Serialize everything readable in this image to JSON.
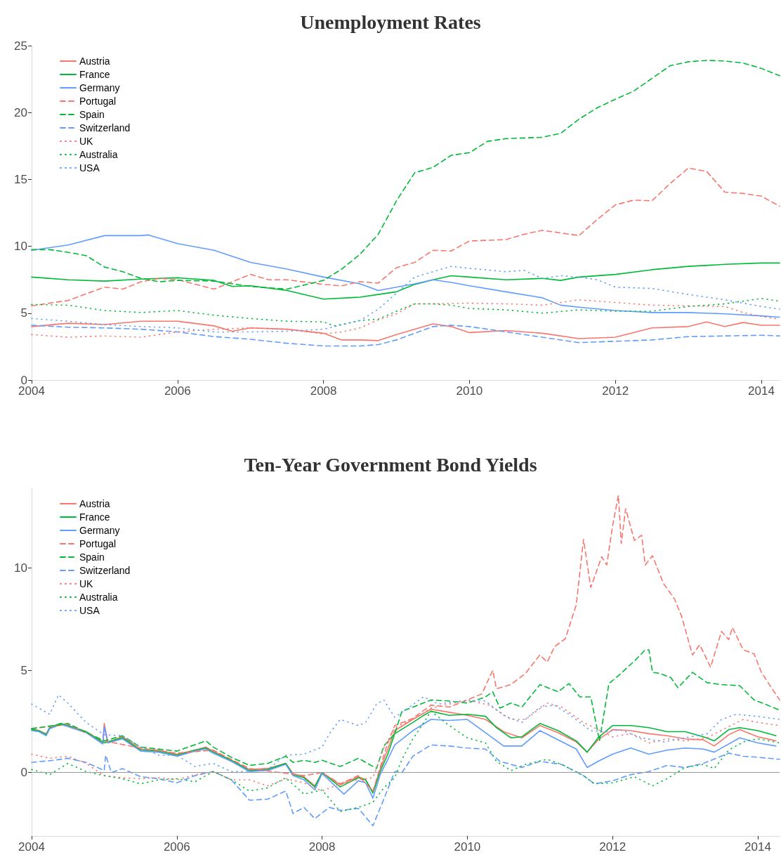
{
  "chart_data": [
    {
      "type": "line",
      "title": "Unemployment Rates",
      "xlim": [
        2004,
        2014.25
      ],
      "xticks": [
        2004,
        2006,
        2008,
        2010,
        2012,
        2014
      ],
      "ylim": [
        0,
        25
      ],
      "yticks": [
        0,
        5,
        10,
        15,
        20,
        25
      ],
      "legend": "top left",
      "series": [
        {
          "name": "Austria",
          "color": "#f8766d",
          "line_style": "solid",
          "x": [
            2004,
            2004.5,
            2005,
            2005.5,
            2006,
            2006.5,
            2006.75,
            2007,
            2007.5,
            2008,
            2008.25,
            2008.5,
            2008.75,
            2009,
            2009.5,
            2009.75,
            2010,
            2010.5,
            2011,
            2011.5,
            2012,
            2012.5,
            2013,
            2013.25,
            2013.5,
            2013.75,
            2014,
            2014.25
          ],
          "values": [
            4.0,
            4.25,
            4.15,
            4.4,
            4.4,
            4.05,
            3.65,
            3.9,
            3.8,
            3.5,
            3.0,
            3.0,
            2.95,
            3.4,
            4.2,
            4.0,
            3.55,
            3.7,
            3.5,
            3.1,
            3.2,
            3.9,
            4.0,
            4.35,
            4.0,
            4.3,
            4.1,
            4.1
          ]
        },
        {
          "name": "France",
          "color": "#00ba38",
          "line_style": "solid",
          "x": [
            2004,
            2004.5,
            2005,
            2005.5,
            2006,
            2006.5,
            2006.75,
            2007,
            2007.5,
            2008,
            2008.5,
            2008.75,
            2009,
            2009.25,
            2009.5,
            2009.75,
            2010,
            2010.5,
            2011,
            2011.25,
            2011.5,
            2012,
            2012.5,
            2013,
            2013.5,
            2014,
            2014.25
          ],
          "values": [
            7.7,
            7.5,
            7.4,
            7.55,
            7.65,
            7.45,
            7.0,
            7.05,
            6.7,
            6.05,
            6.2,
            6.4,
            6.6,
            7.15,
            7.5,
            7.8,
            7.7,
            7.5,
            7.6,
            7.45,
            7.7,
            7.9,
            8.25,
            8.5,
            8.65,
            8.75,
            8.75
          ]
        },
        {
          "name": "Germany",
          "color": "#619cff",
          "line_style": "solid",
          "x": [
            2004,
            2004.5,
            2005,
            2005.5,
            2005.6,
            2006,
            2006.5,
            2007,
            2007.5,
            2008,
            2008.5,
            2008.75,
            2009.25,
            2009.5,
            2009.75,
            2010,
            2010.5,
            2011,
            2011.25,
            2011.5,
            2012,
            2012.5,
            2013,
            2013.5,
            2014,
            2014.25
          ],
          "values": [
            9.7,
            10.1,
            10.8,
            10.8,
            10.85,
            10.2,
            9.7,
            8.8,
            8.3,
            7.7,
            7.2,
            6.7,
            7.2,
            7.5,
            7.3,
            7.05,
            6.6,
            6.15,
            5.6,
            5.45,
            5.2,
            5.05,
            5.05,
            4.95,
            4.8,
            4.7
          ]
        },
        {
          "name": "Portugal",
          "color": "#f8766d",
          "line_style": "dashed",
          "x": [
            2004,
            2004.5,
            2005,
            2005.25,
            2005.5,
            2005.75,
            2006,
            2006.5,
            2007,
            2007.25,
            2007.5,
            2008,
            2008.25,
            2008.5,
            2008.75,
            2009,
            2009.25,
            2009.5,
            2009.75,
            2010,
            2010.5,
            2010.75,
            2011,
            2011.5,
            2011.75,
            2012,
            2012.25,
            2012.5,
            2012.75,
            2013,
            2013.25,
            2013.5,
            2013.75,
            2014,
            2014.25
          ],
          "values": [
            5.55,
            5.95,
            6.95,
            6.8,
            7.35,
            7.6,
            7.5,
            6.8,
            7.9,
            7.5,
            7.5,
            7.15,
            7.05,
            7.35,
            7.25,
            8.4,
            8.8,
            9.7,
            9.65,
            10.4,
            10.5,
            10.9,
            11.2,
            10.8,
            12.0,
            13.1,
            13.45,
            13.4,
            14.7,
            15.85,
            15.6,
            14.05,
            13.95,
            13.75,
            13.0
          ]
        },
        {
          "name": "Spain",
          "color": "#00ba38",
          "line_style": "dashed",
          "x": [
            2004,
            2004.25,
            2004.5,
            2004.75,
            2005,
            2005.25,
            2005.5,
            2005.75,
            2006,
            2006.5,
            2007,
            2007.5,
            2008,
            2008.25,
            2008.5,
            2008.75,
            2009,
            2009.25,
            2009.5,
            2009.75,
            2010,
            2010.25,
            2010.5,
            2011,
            2011.25,
            2011.5,
            2011.75,
            2012,
            2012.25,
            2012.5,
            2012.75,
            2013,
            2013.25,
            2013.5,
            2013.75,
            2014,
            2014.25
          ],
          "values": [
            9.75,
            9.75,
            9.55,
            9.3,
            8.45,
            8.1,
            7.6,
            7.35,
            7.45,
            7.4,
            7.0,
            6.8,
            7.45,
            8.3,
            9.4,
            10.9,
            13.4,
            15.5,
            15.9,
            16.8,
            17.0,
            17.85,
            18.05,
            18.15,
            18.45,
            19.5,
            20.35,
            21.0,
            21.6,
            22.55,
            23.5,
            23.8,
            23.9,
            23.85,
            23.7,
            23.3,
            22.75
          ]
        },
        {
          "name": "Switzerland",
          "color": "#619cff",
          "line_style": "dashed",
          "x": [
            2004,
            2004.5,
            2005,
            2005.5,
            2006,
            2006.5,
            2007,
            2007.5,
            2008,
            2008.5,
            2008.75,
            2009,
            2009.5,
            2009.75,
            2010,
            2010.5,
            2011,
            2011.5,
            2012,
            2012.5,
            2013,
            2013.5,
            2014,
            2014.25
          ],
          "values": [
            4.1,
            3.95,
            3.9,
            3.8,
            3.6,
            3.25,
            3.05,
            2.75,
            2.55,
            2.55,
            2.65,
            3.0,
            4.0,
            4.1,
            4.0,
            3.6,
            3.2,
            2.8,
            2.9,
            3.0,
            3.25,
            3.3,
            3.35,
            3.3
          ]
        },
        {
          "name": "UK",
          "color": "#f8766d",
          "line_style": "dotted",
          "x": [
            2004,
            2004.5,
            2005,
            2005.5,
            2006,
            2006.5,
            2007,
            2007.5,
            2008,
            2008.25,
            2008.5,
            2008.75,
            2009,
            2009.25,
            2009.5,
            2010,
            2010.5,
            2011,
            2011.5,
            2012,
            2012.5,
            2013,
            2013.5,
            2013.75,
            2014,
            2014.25
          ],
          "values": [
            3.4,
            3.2,
            3.3,
            3.2,
            3.6,
            3.8,
            3.9,
            3.8,
            3.45,
            3.6,
            3.9,
            4.5,
            4.95,
            5.7,
            5.7,
            5.75,
            5.7,
            5.6,
            6.0,
            5.8,
            5.6,
            5.55,
            5.5,
            5.05,
            4.75,
            4.55
          ]
        },
        {
          "name": "Australia",
          "color": "#00ba38",
          "line_style": "dotted",
          "x": [
            2004,
            2004.5,
            2005,
            2005.5,
            2006,
            2006.5,
            2007,
            2007.5,
            2008,
            2008.15,
            2008.5,
            2008.75,
            2009,
            2009.25,
            2009.5,
            2009.75,
            2010,
            2010.5,
            2011,
            2011.5,
            2012,
            2012.5,
            2013,
            2013.5,
            2014,
            2014.25
          ],
          "values": [
            5.65,
            5.6,
            5.2,
            5.05,
            5.2,
            4.85,
            4.6,
            4.4,
            4.35,
            4.05,
            4.45,
            4.55,
            5.15,
            5.7,
            5.7,
            5.6,
            5.35,
            5.25,
            5.0,
            5.25,
            5.15,
            5.15,
            5.5,
            5.7,
            6.1,
            5.9
          ]
        },
        {
          "name": "USA",
          "color": "#619cff",
          "line_style": "dotted",
          "x": [
            2004,
            2004.5,
            2005,
            2005.5,
            2006,
            2006.5,
            2007,
            2007.5,
            2008,
            2008.5,
            2008.75,
            2009,
            2009.25,
            2009.5,
            2009.75,
            2010,
            2010.5,
            2010.75,
            2011,
            2011.25,
            2011.5,
            2011.75,
            2012,
            2012.5,
            2013,
            2013.5,
            2014,
            2014.25
          ],
          "values": [
            4.6,
            4.4,
            4.15,
            4.0,
            3.9,
            3.6,
            3.6,
            3.65,
            3.8,
            4.45,
            5.3,
            6.5,
            7.7,
            8.1,
            8.5,
            8.35,
            8.1,
            8.2,
            7.6,
            7.8,
            7.7,
            7.5,
            6.95,
            6.85,
            6.4,
            6.0,
            5.5,
            5.3
          ]
        }
      ]
    },
    {
      "type": "line",
      "title": "Ten-Year Government Bond Yields",
      "xlim": [
        2004,
        2014.3
      ],
      "xticks": [
        2004,
        2006,
        2008,
        2010,
        2012,
        2014
      ],
      "ylim": [
        -3.1,
        13.9
      ],
      "yticks": [
        0,
        5,
        10
      ],
      "legend": "top left",
      "ref_lines": [
        {
          "axis": "y",
          "value": 0,
          "color": "#999999"
        }
      ],
      "series": [
        {
          "name": "Austria",
          "color": "#f8766d",
          "line_style": "solid",
          "x": [
            2004,
            2004.1,
            2004.2,
            2004.25,
            2004.4,
            2004.5,
            2004.75,
            2004.98,
            2005.0,
            2005.05,
            2005.25,
            2005.5,
            2005.75,
            2006,
            2006.25,
            2006.4,
            2006.5,
            2006.75,
            2007,
            2007.25,
            2007.5,
            2007.6,
            2007.75,
            2007.9,
            2008,
            2008.25,
            2008.5,
            2008.6,
            2008.7,
            2008.8,
            2008.9,
            2009,
            2009.25,
            2009.5,
            2009.75,
            2010,
            2010.25,
            2010.5,
            2010.75,
            2011,
            2011.25,
            2011.5,
            2011.65,
            2011.8,
            2012,
            2012.25,
            2012.5,
            2012.75,
            2013,
            2013.25,
            2013.4,
            2013.6,
            2013.75,
            2014,
            2014.25
          ],
          "values": [
            2.15,
            2.05,
            1.9,
            2.2,
            2.4,
            2.3,
            2.0,
            1.45,
            2.4,
            1.5,
            1.75,
            1.15,
            1.1,
            0.9,
            1.1,
            1.25,
            1.05,
            0.6,
            0.15,
            0.2,
            0.45,
            -0.05,
            -0.2,
            -0.65,
            0.0,
            -0.6,
            -0.2,
            -0.35,
            -0.95,
            0.15,
            1.1,
            2.05,
            2.6,
            3.1,
            2.95,
            2.8,
            2.6,
            2.0,
            1.7,
            2.3,
            1.95,
            1.5,
            1.0,
            1.6,
            2.1,
            2.05,
            1.9,
            1.8,
            1.65,
            1.6,
            1.3,
            1.85,
            2.1,
            1.75,
            1.55
          ]
        },
        {
          "name": "France",
          "color": "#00ba38",
          "line_style": "solid",
          "x": [
            2004,
            2004.1,
            2004.2,
            2004.25,
            2004.4,
            2004.5,
            2004.75,
            2005,
            2005.25,
            2005.5,
            2005.75,
            2006,
            2006.25,
            2006.4,
            2006.5,
            2006.75,
            2007,
            2007.25,
            2007.5,
            2007.6,
            2007.75,
            2007.9,
            2008,
            2008.25,
            2008.5,
            2008.6,
            2008.7,
            2008.8,
            2008.9,
            2009,
            2009.25,
            2009.4,
            2009.5,
            2009.75,
            2010,
            2010.25,
            2010.4,
            2010.6,
            2010.75,
            2011,
            2011.25,
            2011.5,
            2011.65,
            2011.8,
            2012,
            2012.25,
            2012.5,
            2012.75,
            2013,
            2013.25,
            2013.4,
            2013.6,
            2013.75,
            2014,
            2014.25
          ],
          "values": [
            2.1,
            2.05,
            1.85,
            2.2,
            2.4,
            2.3,
            2.0,
            1.45,
            1.7,
            1.1,
            1.05,
            0.85,
            1.1,
            1.2,
            1.0,
            0.6,
            0.1,
            0.15,
            0.45,
            -0.1,
            -0.25,
            -0.7,
            0.0,
            -0.7,
            -0.25,
            -0.35,
            -1.0,
            0.05,
            0.85,
            1.9,
            2.45,
            2.8,
            3.0,
            2.8,
            2.85,
            2.75,
            2.2,
            1.7,
            1.75,
            2.4,
            2.05,
            1.55,
            1.0,
            1.7,
            2.3,
            2.3,
            2.2,
            2.0,
            2.0,
            1.75,
            1.55,
            2.1,
            2.2,
            2.05,
            1.8
          ]
        },
        {
          "name": "Germany",
          "color": "#619cff",
          "line_style": "solid",
          "x": [
            2004,
            2004.1,
            2004.2,
            2004.25,
            2004.4,
            2004.5,
            2004.75,
            2004.98,
            2005.0,
            2005.05,
            2005.25,
            2005.5,
            2005.75,
            2006,
            2006.25,
            2006.4,
            2006.5,
            2006.75,
            2007,
            2007.25,
            2007.5,
            2007.6,
            2007.75,
            2007.9,
            2008,
            2008.3,
            2008.5,
            2008.6,
            2008.7,
            2008.8,
            2008.9,
            2009,
            2009.25,
            2009.5,
            2009.75,
            2010,
            2010.5,
            2010.75,
            2011,
            2011.5,
            2011.65,
            2011.8,
            2012,
            2012.25,
            2012.5,
            2012.75,
            2013,
            2013.25,
            2013.4,
            2013.75,
            2014,
            2014.25
          ],
          "values": [
            2.05,
            2.0,
            1.8,
            2.15,
            2.35,
            2.25,
            1.95,
            1.4,
            2.25,
            1.45,
            1.65,
            1.05,
            1.0,
            0.8,
            1.05,
            1.15,
            0.95,
            0.55,
            0.05,
            0.1,
            0.4,
            -0.15,
            -0.35,
            -0.85,
            -0.05,
            -1.05,
            -0.4,
            -0.5,
            -1.25,
            -0.1,
            0.6,
            1.35,
            2.05,
            2.6,
            2.55,
            2.6,
            1.3,
            1.3,
            2.05,
            1.15,
            0.25,
            0.55,
            0.9,
            1.2,
            0.9,
            1.1,
            1.2,
            1.15,
            1.0,
            1.7,
            1.45,
            1.3
          ]
        },
        {
          "name": "Portugal",
          "color": "#f8766d",
          "line_style": "dashed",
          "x": [
            2004,
            2004.5,
            2005,
            2005.5,
            2006,
            2006.5,
            2007,
            2007.75,
            2008,
            2008.25,
            2008.5,
            2008.7,
            2008.9,
            2009,
            2009.25,
            2009.5,
            2009.75,
            2010,
            2010.2,
            2010.35,
            2010.4,
            2010.6,
            2010.8,
            2011,
            2011.1,
            2011.2,
            2011.35,
            2011.5,
            2011.6,
            2011.7,
            2011.85,
            2011.92,
            2012,
            2012.08,
            2012.12,
            2012.18,
            2012.3,
            2012.4,
            2012.45,
            2012.55,
            2012.7,
            2012.85,
            2012.95,
            2013.1,
            2013.2,
            2013.35,
            2013.5,
            2013.6,
            2013.65,
            2013.8,
            2013.95,
            2014.05,
            2014.15,
            2014.3
          ],
          "values": [
            2.15,
            2.35,
            1.55,
            1.2,
            0.95,
            1.1,
            0.2,
            -0.15,
            0.0,
            -0.55,
            -0.15,
            -0.9,
            1.4,
            2.3,
            2.65,
            3.3,
            3.2,
            3.55,
            3.85,
            5.0,
            4.1,
            4.3,
            4.85,
            5.75,
            5.4,
            6.15,
            6.55,
            8.2,
            11.4,
            9.05,
            10.55,
            10.15,
            12.05,
            13.55,
            11.2,
            12.9,
            11.35,
            11.6,
            10.15,
            10.6,
            9.25,
            8.5,
            7.65,
            5.75,
            6.25,
            5.15,
            6.9,
            6.5,
            7.1,
            6.0,
            5.8,
            4.9,
            4.35,
            3.55
          ]
        },
        {
          "name": "Spain",
          "color": "#00ba38",
          "line_style": "dashed",
          "x": [
            2004,
            2004.5,
            2005,
            2005.25,
            2005.5,
            2006,
            2006.4,
            2006.5,
            2006.75,
            2007,
            2007.25,
            2007.5,
            2007.6,
            2007.75,
            2007.9,
            2008,
            2008.25,
            2008.5,
            2008.75,
            2008.85,
            2009,
            2009.1,
            2009.25,
            2009.5,
            2009.75,
            2010,
            2010.25,
            2010.35,
            2010.45,
            2010.6,
            2010.75,
            2011,
            2011.25,
            2011.4,
            2011.55,
            2011.7,
            2011.82,
            2011.95,
            2012.1,
            2012.3,
            2012.45,
            2012.5,
            2012.55,
            2012.65,
            2012.8,
            2012.9,
            2013.1,
            2013.3,
            2013.5,
            2013.75,
            2013.95,
            2014.1,
            2014.3
          ],
          "values": [
            2.15,
            2.4,
            1.55,
            1.8,
            1.25,
            1.05,
            1.55,
            1.25,
            0.75,
            0.35,
            0.45,
            0.8,
            0.5,
            0.6,
            0.5,
            0.6,
            0.3,
            0.7,
            0.2,
            1.3,
            1.9,
            3.0,
            3.2,
            3.55,
            3.5,
            3.4,
            3.7,
            3.95,
            3.15,
            3.4,
            3.2,
            4.3,
            3.95,
            4.35,
            3.7,
            3.7,
            1.55,
            4.35,
            4.8,
            5.45,
            6.0,
            6.0,
            4.9,
            4.85,
            4.65,
            4.15,
            4.9,
            4.4,
            4.3,
            4.25,
            3.55,
            3.35,
            3.05
          ]
        },
        {
          "name": "Switzerland",
          "color": "#619cff",
          "line_style": "dashed",
          "x": [
            2004,
            2004.3,
            2004.5,
            2004.75,
            2005,
            2005.02,
            2005.1,
            2005.25,
            2005.5,
            2005.75,
            2006,
            2006.25,
            2006.5,
            2006.75,
            2007,
            2007.25,
            2007.5,
            2007.6,
            2007.75,
            2007.9,
            2008.1,
            2008.25,
            2008.5,
            2008.7,
            2008.85,
            2009,
            2009.1,
            2009.25,
            2009.5,
            2009.75,
            2010,
            2010.25,
            2010.45,
            2010.75,
            2011,
            2011.3,
            2011.6,
            2011.75,
            2012,
            2012.25,
            2012.5,
            2012.75,
            2013,
            2013.25,
            2013.6,
            2013.8,
            2014,
            2014.3
          ],
          "values": [
            0.5,
            0.6,
            0.7,
            0.5,
            0.1,
            0.85,
            0.0,
            0.2,
            -0.2,
            -0.3,
            -0.5,
            -0.15,
            0.05,
            -0.35,
            -1.35,
            -1.3,
            -0.9,
            -2.0,
            -1.7,
            -2.25,
            -1.7,
            -1.85,
            -1.75,
            -2.6,
            -1.3,
            0.05,
            0.0,
            0.8,
            1.35,
            1.3,
            1.2,
            1.15,
            0.55,
            0.25,
            0.55,
            0.4,
            -0.15,
            -0.55,
            -0.4,
            -0.1,
            0.05,
            0.35,
            0.25,
            0.45,
            0.95,
            0.8,
            0.75,
            0.65
          ]
        },
        {
          "name": "UK",
          "color": "#f8766d",
          "line_style": "dotted",
          "x": [
            2004,
            2004.25,
            2004.5,
            2004.75,
            2005,
            2005.25,
            2005.5,
            2005.75,
            2006,
            2006.25,
            2006.5,
            2006.75,
            2007,
            2007.25,
            2007.5,
            2007.75,
            2008,
            2008.25,
            2008.5,
            2008.7,
            2008.85,
            2009,
            2009.25,
            2009.5,
            2010,
            2010.3,
            2010.6,
            2010.8,
            2011.1,
            2011.3,
            2011.6,
            2011.8,
            2012,
            2012.25,
            2012.5,
            2012.75,
            2013,
            2013.3,
            2013.6,
            2013.8,
            2014,
            2014.3
          ],
          "values": [
            0.9,
            0.7,
            0.8,
            0.45,
            -0.15,
            -0.25,
            -0.3,
            -0.25,
            -0.35,
            -0.1,
            0.05,
            -0.35,
            -0.35,
            -0.65,
            -0.3,
            -0.5,
            -0.9,
            -0.55,
            -0.35,
            -0.25,
            1.2,
            2.2,
            2.6,
            3.15,
            3.55,
            3.3,
            2.6,
            2.6,
            3.4,
            3.2,
            2.45,
            2.1,
            1.75,
            1.9,
            1.45,
            1.65,
            1.55,
            1.7,
            2.25,
            2.6,
            2.45,
            2.3
          ]
        },
        {
          "name": "Australia",
          "color": "#00ba38",
          "line_style": "dotted",
          "x": [
            2004,
            2004.25,
            2004.5,
            2004.75,
            2005,
            2005.25,
            2005.5,
            2005.75,
            2006,
            2006.25,
            2006.5,
            2006.75,
            2007,
            2007.25,
            2007.5,
            2007.75,
            2008,
            2008.25,
            2008.5,
            2008.7,
            2008.85,
            2009,
            2009.1,
            2009.25,
            2009.4,
            2009.5,
            2009.75,
            2010,
            2010.25,
            2010.4,
            2010.6,
            2010.8,
            2011.1,
            2011.3,
            2011.6,
            2011.75,
            2012,
            2012.3,
            2012.55,
            2012.75,
            2013,
            2013.25,
            2013.4,
            2013.6,
            2013.8,
            2014,
            2014.3
          ],
          "values": [
            0.15,
            -0.1,
            0.45,
            0.05,
            -0.15,
            -0.3,
            -0.55,
            -0.35,
            -0.3,
            -0.45,
            0.05,
            -0.35,
            -0.9,
            -0.75,
            -0.25,
            -1.05,
            -0.85,
            -1.9,
            -1.7,
            -1.45,
            -0.75,
            -0.25,
            0.65,
            1.65,
            2.45,
            3.0,
            2.3,
            1.7,
            1.45,
            0.55,
            0.1,
            0.4,
            0.65,
            0.4,
            -0.15,
            -0.55,
            -0.5,
            -0.2,
            -0.65,
            -0.3,
            0.25,
            0.4,
            0.2,
            1.1,
            1.5,
            1.65,
            1.45
          ]
        },
        {
          "name": "USA",
          "color": "#619cff",
          "line_style": "dotted",
          "x": [
            2004,
            2004.15,
            2004.25,
            2004.37,
            2004.5,
            2004.75,
            2005,
            2005.25,
            2005.5,
            2005.75,
            2006,
            2006.25,
            2006.5,
            2006.75,
            2007,
            2007.25,
            2007.5,
            2007.75,
            2008,
            2008.1,
            2008.25,
            2008.5,
            2008.6,
            2008.75,
            2008.85,
            2009,
            2009.4,
            2009.6,
            2009.9,
            2010.25,
            2010.5,
            2010.75,
            2011,
            2011.2,
            2011.4,
            2011.7,
            2011.9,
            2012.1,
            2012.4,
            2012.7,
            2013,
            2013.3,
            2013.5,
            2013.7,
            2014,
            2014.3
          ],
          "values": [
            3.35,
            3.05,
            2.85,
            3.8,
            3.4,
            2.45,
            1.85,
            1.8,
            1.25,
            0.85,
            0.85,
            0.3,
            0.45,
            0.05,
            0.05,
            0.15,
            0.85,
            0.9,
            1.25,
            1.9,
            2.6,
            2.3,
            2.45,
            3.35,
            3.55,
            2.7,
            3.7,
            3.35,
            3.5,
            3.5,
            2.8,
            2.45,
            3.2,
            3.3,
            2.85,
            2.05,
            2.0,
            2.1,
            1.7,
            1.5,
            1.7,
            1.9,
            2.6,
            2.85,
            2.75,
            2.6
          ]
        }
      ]
    }
  ]
}
